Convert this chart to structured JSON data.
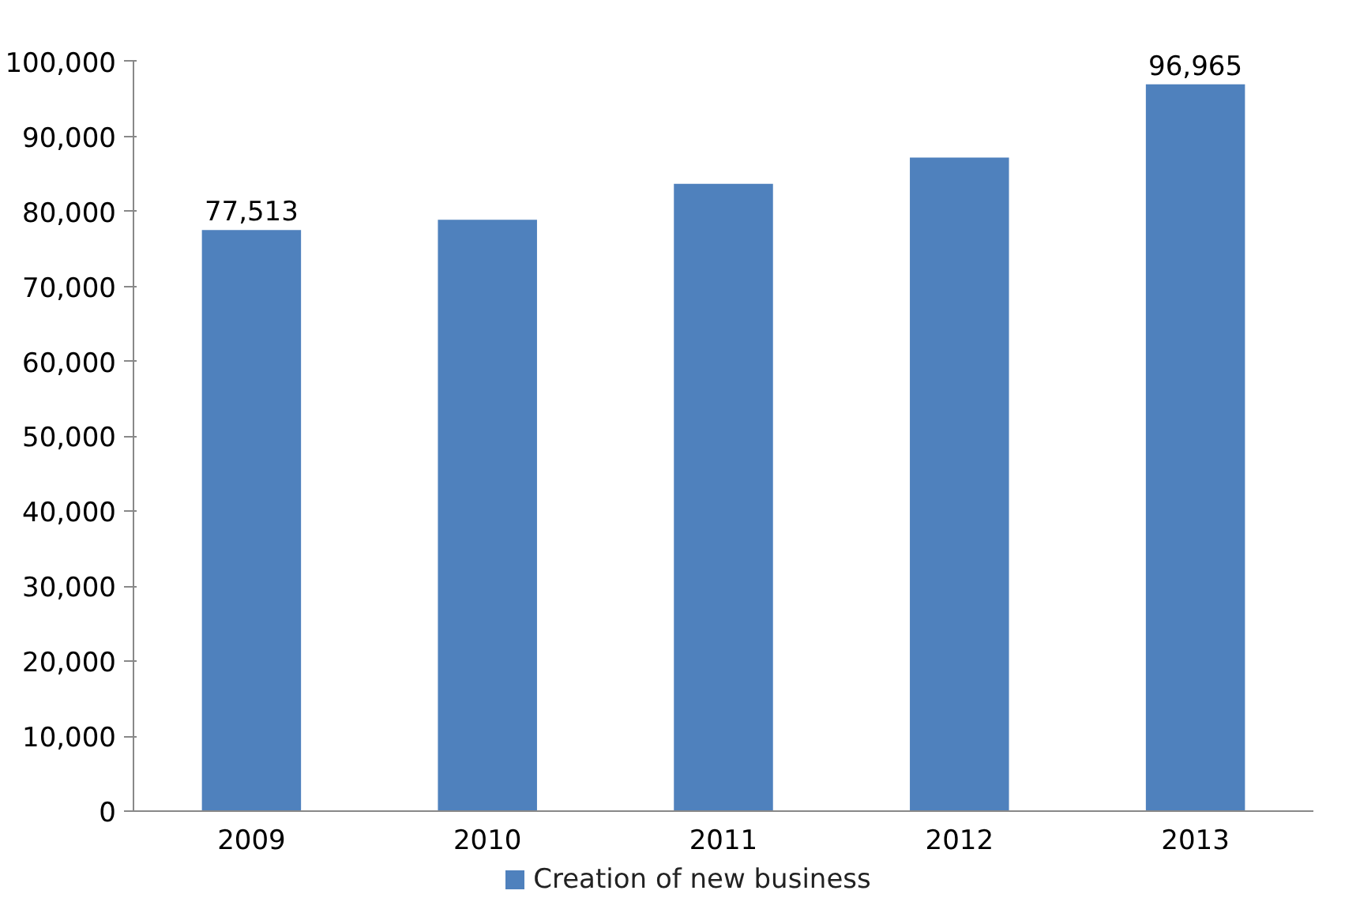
{
  "chart_data": {
    "type": "bar",
    "categories": [
      "2009",
      "2010",
      "2011",
      "2012",
      "2013"
    ],
    "series": [
      {
        "name": "Creation of new business",
        "color": "#4f81bd",
        "values": [
          77513,
          78900,
          83700,
          87200,
          96965
        ],
        "value_labels": [
          "77,513",
          null,
          null,
          null,
          "96,965"
        ]
      }
    ],
    "ylim": [
      0,
      100000
    ],
    "yticks": [
      {
        "value": 0,
        "label": "0"
      },
      {
        "value": 10000,
        "label": "10,000"
      },
      {
        "value": 20000,
        "label": "20,000"
      },
      {
        "value": 30000,
        "label": "30,000"
      },
      {
        "value": 40000,
        "label": "40,000"
      },
      {
        "value": 50000,
        "label": "50,000"
      },
      {
        "value": 60000,
        "label": "60,000"
      },
      {
        "value": 70000,
        "label": "70,000"
      },
      {
        "value": 80000,
        "label": "80,000"
      },
      {
        "value": 90000,
        "label": "90,000"
      },
      {
        "value": 100000,
        "label": "100,000"
      }
    ],
    "grid": false,
    "legend": "bottom"
  }
}
